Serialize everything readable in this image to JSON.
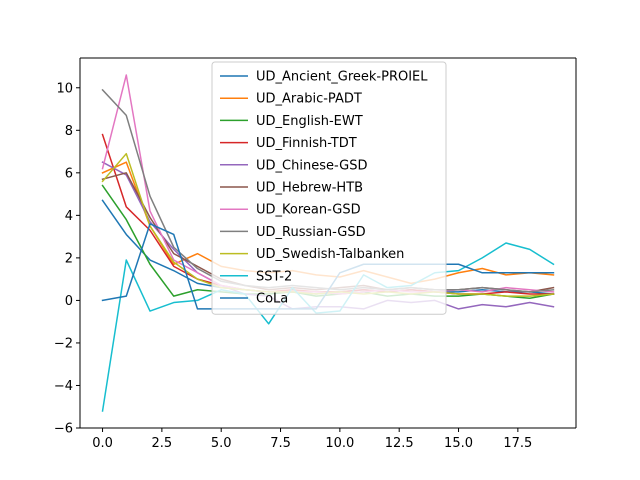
{
  "chart_data": {
    "type": "line",
    "title": "",
    "xlabel": "",
    "ylabel": "",
    "xlim": [
      -0.95,
      19.95
    ],
    "ylim": [
      -6,
      11.4
    ],
    "x_ticks": [
      0.0,
      2.5,
      5.0,
      7.5,
      10.0,
      12.5,
      15.0,
      17.5
    ],
    "x_tick_labels": [
      "0.0",
      "2.5",
      "5.0",
      "7.5",
      "10.0",
      "12.5",
      "15.0",
      "17.5"
    ],
    "y_ticks": [
      -6,
      -4,
      -2,
      0,
      2,
      4,
      6,
      8,
      10
    ],
    "y_tick_labels": [
      "−6",
      "−4",
      "−2",
      "0",
      "2",
      "4",
      "6",
      "8",
      "10"
    ],
    "grid": false,
    "legend_placement": "top-center",
    "x": [
      0,
      1,
      2,
      3,
      4,
      5,
      6,
      7,
      8,
      9,
      10,
      11,
      12,
      13,
      14,
      15,
      16,
      17,
      18,
      19
    ],
    "series": [
      {
        "name": "UD_Ancient_Greek-PROIEL",
        "color": "#1f77b4",
        "values": [
          4.7,
          3.1,
          1.9,
          1.4,
          0.8,
          0.6,
          0.5,
          0.4,
          0.4,
          0.3,
          0.4,
          0.5,
          0.4,
          0.5,
          0.4,
          0.4,
          0.5,
          0.4,
          0.4,
          0.3
        ]
      },
      {
        "name": "UD_Arabic-PADT",
        "color": "#ff7f0e",
        "values": [
          6.0,
          6.5,
          3.5,
          1.7,
          2.2,
          1.6,
          1.4,
          1.3,
          1.4,
          1.2,
          1.1,
          1.4,
          1.1,
          0.8,
          1.0,
          1.3,
          1.5,
          1.2,
          1.3,
          1.2
        ]
      },
      {
        "name": "UD_English-EWT",
        "color": "#2ca02c",
        "values": [
          5.4,
          3.8,
          1.7,
          0.2,
          0.5,
          0.4,
          0.3,
          0.3,
          0.4,
          0.2,
          0.3,
          0.4,
          0.2,
          0.3,
          0.2,
          0.2,
          0.3,
          0.2,
          0.1,
          0.3
        ]
      },
      {
        "name": "UD_Finnish-TDT",
        "color": "#d62728",
        "values": [
          7.8,
          4.4,
          3.3,
          1.6,
          1.0,
          0.7,
          0.5,
          0.4,
          0.5,
          0.4,
          0.4,
          0.5,
          0.4,
          0.5,
          0.4,
          0.3,
          0.3,
          0.4,
          0.3,
          0.3
        ]
      },
      {
        "name": "UD_Chinese-GSD",
        "color": "#9467bd",
        "values": [
          6.5,
          5.9,
          3.7,
          2.4,
          1.3,
          0.7,
          0.3,
          0.2,
          -0.4,
          -0.3,
          -0.3,
          -0.4,
          0.0,
          -0.1,
          0.0,
          -0.4,
          -0.2,
          -0.3,
          -0.1,
          -0.3
        ]
      },
      {
        "name": "UD_Hebrew-HTB",
        "color": "#8c564b",
        "values": [
          5.7,
          6.0,
          3.9,
          2.2,
          1.6,
          1.0,
          0.7,
          0.5,
          0.6,
          0.5,
          0.6,
          0.7,
          0.5,
          0.6,
          0.5,
          0.5,
          0.6,
          0.5,
          0.4,
          0.6
        ]
      },
      {
        "name": "UD_Korean-GSD",
        "color": "#e377c2",
        "values": [
          6.2,
          10.6,
          4.2,
          1.9,
          1.3,
          0.7,
          0.5,
          0.4,
          0.4,
          0.4,
          0.3,
          0.4,
          0.5,
          0.4,
          0.4,
          0.5,
          0.4,
          0.6,
          0.5,
          0.4
        ]
      },
      {
        "name": "UD_Russian-GSD",
        "color": "#7f7f7f",
        "values": [
          9.9,
          8.7,
          4.9,
          2.5,
          1.5,
          0.9,
          0.7,
          0.6,
          0.7,
          0.6,
          0.5,
          0.6,
          0.5,
          0.6,
          0.5,
          0.5,
          0.6,
          0.5,
          0.4,
          0.5
        ]
      },
      {
        "name": "UD_Swedish-Talbanken",
        "color": "#bcbd22",
        "values": [
          5.6,
          6.9,
          3.5,
          1.8,
          1.0,
          0.6,
          0.5,
          0.4,
          0.4,
          0.3,
          0.4,
          0.3,
          0.4,
          0.3,
          0.4,
          0.3,
          0.3,
          0.2,
          0.2,
          0.3
        ]
      },
      {
        "name": "SST-2",
        "color": "#17becf",
        "values": [
          -5.2,
          1.9,
          -0.5,
          -0.1,
          0.0,
          0.5,
          0.3,
          -1.1,
          0.6,
          -0.6,
          -0.5,
          1.2,
          0.6,
          0.7,
          1.3,
          1.4,
          2.0,
          2.7,
          2.4,
          1.7
        ]
      },
      {
        "name": "CoLa",
        "color": "#1f77b4",
        "values": [
          0.0,
          0.2,
          3.6,
          3.1,
          -0.4,
          -0.4,
          -0.4,
          -0.4,
          -0.4,
          -0.4,
          1.3,
          1.7,
          1.7,
          1.7,
          1.7,
          1.7,
          1.3,
          1.3,
          1.3,
          1.3
        ]
      }
    ]
  }
}
